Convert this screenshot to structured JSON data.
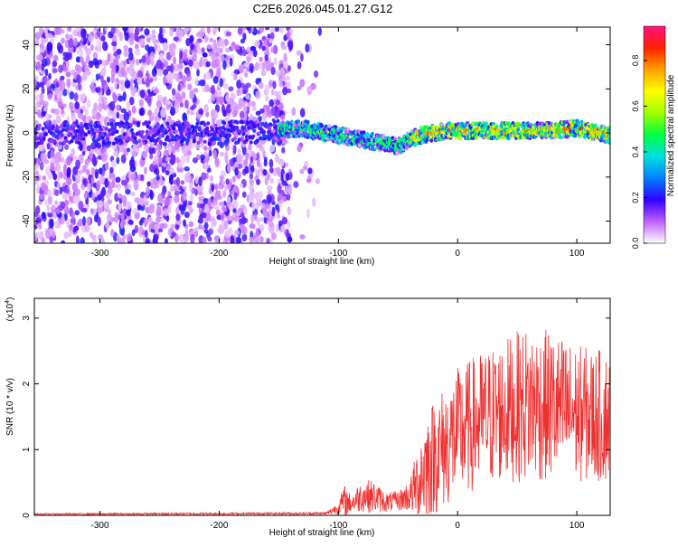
{
  "title": "C2E6.2026.045.01.27.G12",
  "chart_data": [
    {
      "type": "heatmap",
      "title": "C2E6.2026.045.01.27.G12",
      "xlabel": "Height of straight line (km)",
      "ylabel": "Frequency (Hz)",
      "xlim": [
        -355,
        128
      ],
      "ylim": [
        -50,
        48
      ],
      "xticks": [
        -300,
        -200,
        -100,
        0,
        100
      ],
      "yticks": [
        -40,
        -20,
        0,
        20,
        40
      ],
      "colorbar": {
        "label": "Normalized spectral amplitude",
        "ticks": [
          "0.0",
          "0.2",
          "0.4",
          "0.6",
          "0.8"
        ],
        "range": [
          0,
          0.95
        ],
        "colors": [
          "#ffffff",
          "#c060ff",
          "#3000ff",
          "#0080ff",
          "#00e0e0",
          "#00ff40",
          "#a0ff00",
          "#ffff00",
          "#ffa000",
          "#ff2000",
          "#ff1080"
        ]
      },
      "trace": {
        "x": [
          -355,
          -300,
          -250,
          -200,
          -150,
          -130,
          -110,
          -90,
          -70,
          -50,
          -40,
          -30,
          -10,
          10,
          40,
          70,
          100,
          128
        ],
        "y": [
          0,
          0,
          0,
          0,
          1,
          2,
          0,
          -2,
          -4,
          -6,
          -3,
          -1,
          1,
          1,
          1,
          1,
          2,
          -1
        ]
      }
    },
    {
      "type": "line",
      "xlabel": "Height of straight line (km)",
      "ylabel": "SNR (10 * v/v)",
      "y_multiplier": "(x10",
      "y_multiplier_exp": "4",
      "y_multiplier_close": ")",
      "xlim": [
        -355,
        128
      ],
      "ylim": [
        0,
        3.3
      ],
      "xticks": [
        -300,
        -200,
        -100,
        0,
        100
      ],
      "yticks": [
        0,
        1,
        2,
        3
      ],
      "color": "#ee3030",
      "envelope": {
        "x": [
          -355,
          -110,
          -100,
          -95,
          -90,
          -80,
          -70,
          -60,
          -50,
          -40,
          -35,
          -30,
          -20,
          -10,
          0,
          20,
          40,
          60,
          80,
          100,
          128
        ],
        "mean": [
          0.02,
          0.03,
          0.12,
          0.22,
          0.18,
          0.3,
          0.28,
          0.2,
          0.22,
          0.3,
          0.45,
          0.65,
          0.9,
          1.05,
          1.25,
          1.45,
          1.6,
          1.7,
          1.65,
          1.55,
          1.5
        ],
        "amplitude": [
          0.01,
          0.02,
          0.1,
          0.25,
          0.15,
          0.25,
          0.25,
          0.15,
          0.15,
          0.25,
          0.5,
          0.8,
          0.9,
          0.95,
          1.0,
          1.05,
          1.1,
          1.2,
          1.15,
          1.05,
          1.0
        ]
      }
    }
  ]
}
